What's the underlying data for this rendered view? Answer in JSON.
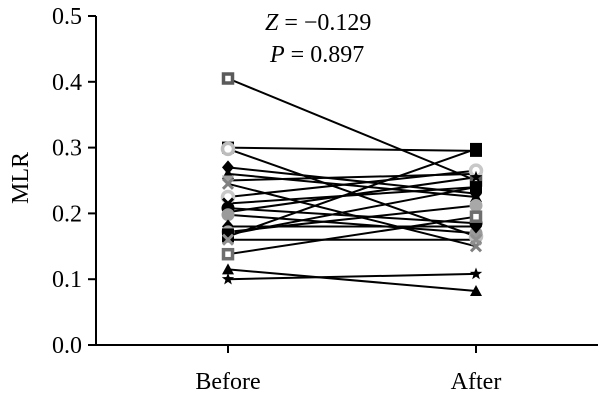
{
  "chart_data": {
    "type": "line",
    "ylabel": "MLR",
    "xlabel": "",
    "categories": [
      "Before",
      "After"
    ],
    "ylim": [
      0,
      0.5
    ],
    "yticks": [
      0.0,
      0.1,
      0.2,
      0.3,
      0.4,
      0.5
    ],
    "ytick_labels": [
      "0.0",
      "0.1",
      "0.2",
      "0.3",
      "0.4",
      "0.5"
    ],
    "grid": false,
    "legend": "none",
    "annotations": {
      "z_symbol": "Z",
      "z_value": " = −0.129",
      "p_symbol": "P",
      "p_value": " = 0.897"
    },
    "series": [
      {
        "values": [
          0.405,
          0.25
        ],
        "marker": "square-open",
        "color": "#5a5a5a"
      },
      {
        "values": [
          0.3,
          0.295
        ],
        "marker": "square",
        "color": "#000000"
      },
      {
        "values": [
          0.298,
          0.165
        ],
        "marker": "circle-open",
        "color": "#bdbdbd"
      },
      {
        "values": [
          0.27,
          0.23
        ],
        "marker": "diamond",
        "color": "#000000"
      },
      {
        "values": [
          0.26,
          0.225
        ],
        "marker": "triangle",
        "color": "#000000"
      },
      {
        "values": [
          0.25,
          0.26
        ],
        "marker": "triangle-down",
        "color": "#a0a0a0"
      },
      {
        "values": [
          0.245,
          0.15
        ],
        "marker": "x",
        "color": "#808080"
      },
      {
        "values": [
          0.225,
          0.265
        ],
        "marker": "circle-open",
        "color": "#c8c8c8"
      },
      {
        "values": [
          0.215,
          0.24
        ],
        "marker": "x",
        "color": "#000000"
      },
      {
        "values": [
          0.208,
          0.185
        ],
        "marker": "circle",
        "color": "#000000"
      },
      {
        "values": [
          0.202,
          0.255
        ],
        "marker": "star",
        "color": "#000000"
      },
      {
        "values": [
          0.198,
          0.17
        ],
        "marker": "circle",
        "color": "#9a9a9a"
      },
      {
        "values": [
          0.18,
          0.18
        ],
        "marker": "diamond",
        "color": "#000000"
      },
      {
        "values": [
          0.172,
          0.212
        ],
        "marker": "circle",
        "color": "#a8a8a8"
      },
      {
        "values": [
          0.168,
          0.24
        ],
        "marker": "square",
        "color": "#000000"
      },
      {
        "values": [
          0.165,
          0.298
        ],
        "marker": "square",
        "color": "#000000"
      },
      {
        "values": [
          0.16,
          0.16
        ],
        "marker": "x",
        "color": "#909090"
      },
      {
        "values": [
          0.138,
          0.195
        ],
        "marker": "square-open",
        "color": "#6e6e6e"
      },
      {
        "values": [
          0.115,
          0.082
        ],
        "marker": "triangle",
        "color": "#000000"
      },
      {
        "values": [
          0.1,
          0.108
        ],
        "marker": "star",
        "color": "#000000"
      }
    ]
  }
}
